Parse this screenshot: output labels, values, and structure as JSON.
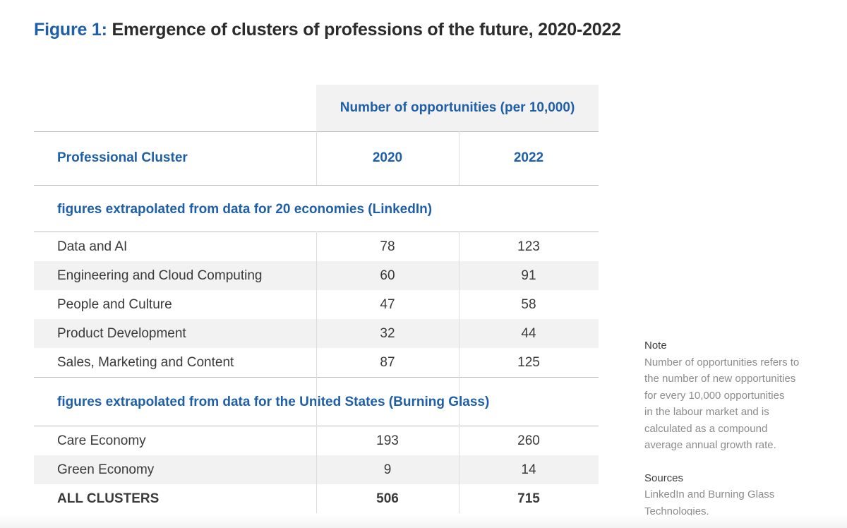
{
  "title": {
    "figure_label": "Figure 1:",
    "text": "Emergence of clusters of professions of the future, 2020-2022"
  },
  "header": {
    "group_label": "Number of opportunities (per 10,000)",
    "first_col": "Professional Cluster",
    "col_2020": "2020",
    "col_2022": "2022"
  },
  "sections": [
    {
      "title": "figures extrapolated from data for 20 economies (LinkedIn)",
      "rows": [
        {
          "label": "Data and AI",
          "v2020": "78",
          "v2022": "123"
        },
        {
          "label": "Engineering and Cloud Computing",
          "v2020": "60",
          "v2022": "91"
        },
        {
          "label": "People and Culture",
          "v2020": "47",
          "v2022": "58"
        },
        {
          "label": "Product Development",
          "v2020": "32",
          "v2022": "44"
        },
        {
          "label": "Sales, Marketing and Content",
          "v2020": "87",
          "v2022": "125"
        }
      ]
    },
    {
      "title": "figures extrapolated from data for the United States (Burning Glass)",
      "rows": [
        {
          "label": "Care Economy",
          "v2020": "193",
          "v2022": "260"
        },
        {
          "label": "Green Economy",
          "v2020": "9",
          "v2022": "14"
        }
      ]
    }
  ],
  "total": {
    "label": "ALL CLUSTERS",
    "v2020": "506",
    "v2022": "715"
  },
  "note": {
    "note_head": "Note",
    "note_lines": [
      "Number of opportunities refers to",
      "the number of new opportunities",
      "for every 10,000 opportunities",
      "in the labour market and is",
      "calculated as a compound",
      "average annual growth rate."
    ],
    "sources_head": "Sources",
    "sources_lines": [
      "LinkedIn and Burning Glass",
      "Technologies."
    ]
  },
  "colors": {
    "accent": "#1f5fa8",
    "row_shade": "#f2f2f2",
    "text": "#3a3a3a",
    "note_text": "#8c8c8c"
  },
  "chart_data": {
    "type": "table",
    "title": "Emergence of clusters of professions of the future, 2020-2022",
    "columns": [
      "Professional Cluster",
      "2020",
      "2022"
    ],
    "column_group": "Number of opportunities (per 10,000)",
    "groups": [
      {
        "name": "figures extrapolated from data for 20 economies (LinkedIn)",
        "rows": [
          [
            "Data and AI",
            78,
            123
          ],
          [
            "Engineering and Cloud Computing",
            60,
            91
          ],
          [
            "People and Culture",
            47,
            58
          ],
          [
            "Product Development",
            32,
            44
          ],
          [
            "Sales, Marketing and Content",
            87,
            125
          ]
        ]
      },
      {
        "name": "figures extrapolated from data for the United States (Burning Glass)",
        "rows": [
          [
            "Care Economy",
            193,
            260
          ],
          [
            "Green Economy",
            9,
            14
          ]
        ]
      }
    ],
    "total": [
      "ALL CLUSTERS",
      506,
      715
    ]
  }
}
